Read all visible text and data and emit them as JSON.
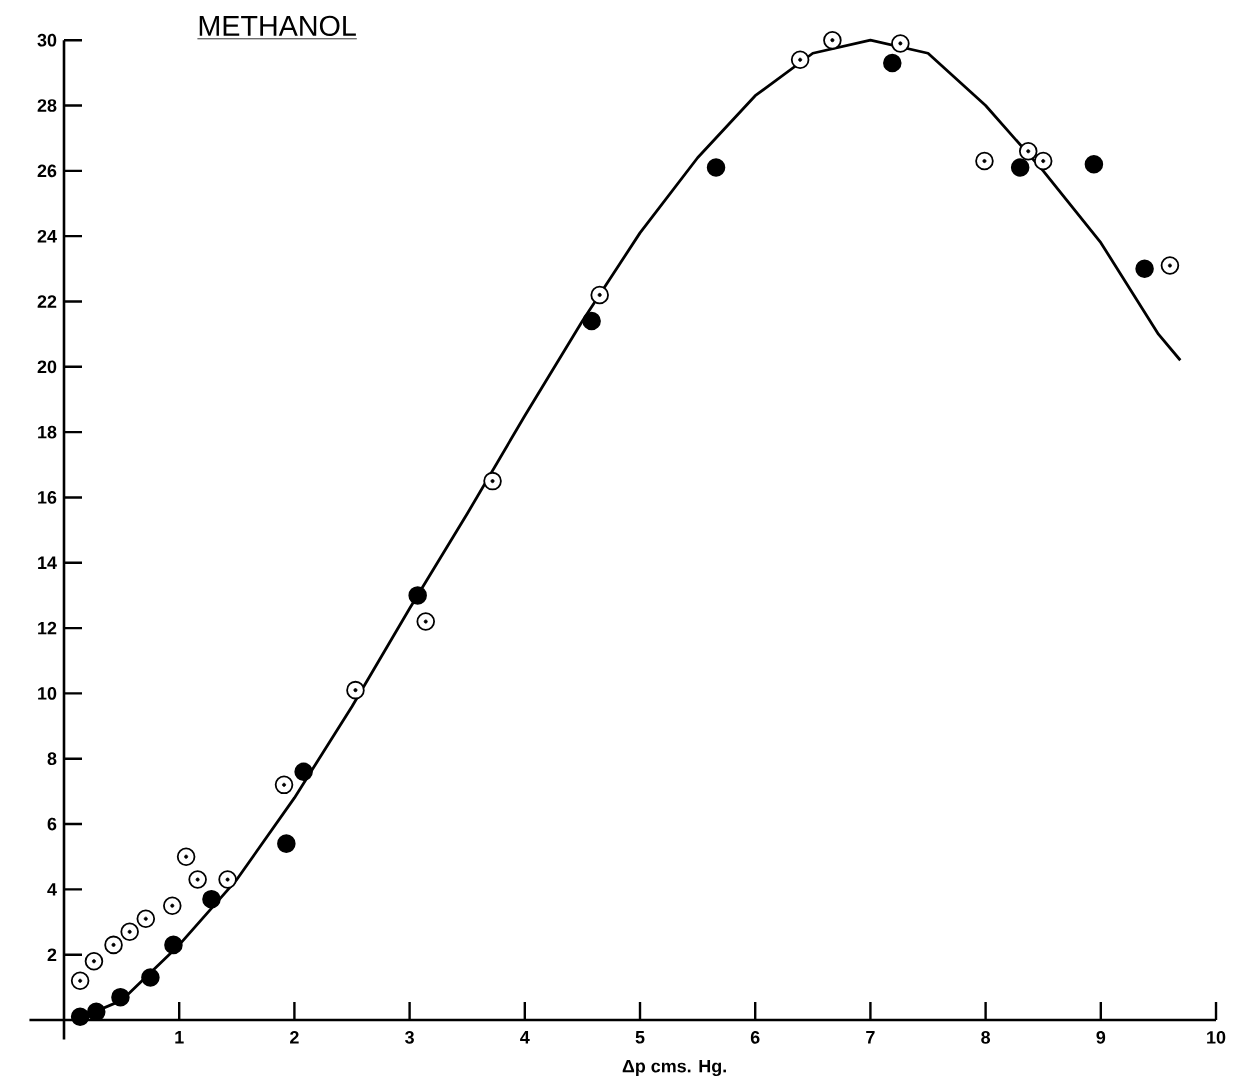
{
  "chart_data": {
    "type": "scatter",
    "title": "METHANOL",
    "xlabel": "Δp cms. Hg.",
    "xlim": [
      -0.3,
      10
    ],
    "ylim": [
      -0.6,
      30
    ],
    "xticks": [
      1,
      2,
      3,
      4,
      5,
      6,
      7,
      8,
      9,
      10
    ],
    "yticks": [
      2,
      4,
      6,
      8,
      10,
      12,
      14,
      16,
      18,
      20,
      22,
      24,
      26,
      28,
      30
    ],
    "grid": false,
    "marker": "circle",
    "series": [
      {
        "color": "#ffffff",
        "x": [
          0.14,
          0.26,
          0.43,
          0.57,
          0.71,
          0.94,
          1.06,
          1.16,
          1.42,
          1.91,
          2.53,
          3.14,
          3.72,
          4.65,
          6.39,
          6.67,
          7.26,
          7.99,
          8.37,
          8.5,
          9.6
        ],
        "values": [
          1.2,
          1.8,
          2.3,
          2.7,
          3.1,
          3.5,
          5.0,
          4.3,
          4.3,
          7.2,
          10.1,
          12.2,
          16.5,
          22.2,
          29.4,
          30.0,
          29.9,
          26.3,
          26.6,
          26.3,
          23.1
        ]
      },
      {
        "color": "#000000",
        "x": [
          0.14,
          0.28,
          0.49,
          0.75,
          0.95,
          1.28,
          1.93,
          2.08,
          3.07,
          4.58,
          5.66,
          7.19,
          8.3,
          8.94,
          9.38
        ],
        "values": [
          0.1,
          0.25,
          0.7,
          1.3,
          2.3,
          3.7,
          5.4,
          7.6,
          13.0,
          21.4,
          26.1,
          29.3,
          26.1,
          26.2,
          23.0
        ]
      },
      {
        "type": "line",
        "color": "#000000",
        "marker": "none",
        "x": [
          0.1,
          0.5,
          1,
          1.5,
          2,
          2.5,
          3,
          3.5,
          4,
          4.5,
          5,
          5.5,
          6,
          6.5,
          7,
          7.5,
          8,
          8.5,
          9,
          9.5,
          9.69
        ],
        "values": [
          0,
          0.6,
          2.3,
          4.3,
          6.8,
          9.6,
          12.6,
          15.5,
          18.5,
          21.4,
          24.1,
          26.4,
          28.3,
          29.6,
          30.0,
          29.6,
          28.0,
          26.0,
          23.8,
          21.0,
          20.2
        ]
      }
    ]
  }
}
